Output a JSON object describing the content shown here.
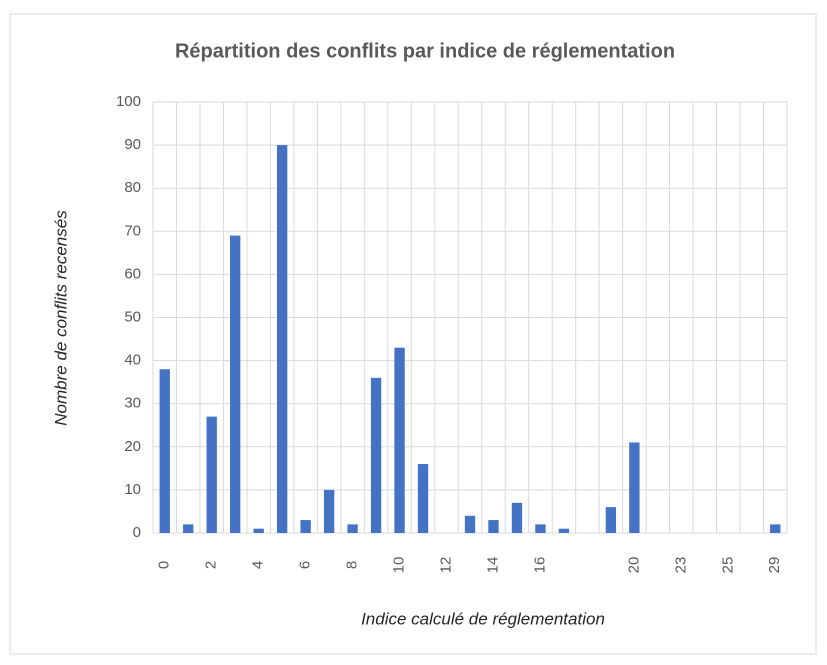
{
  "chart_data": {
    "type": "bar",
    "title": "Répartition des conflits par indice de réglementation",
    "x_label": "Indice calculé de réglementation",
    "y_label": "Nombre de conflits recensés",
    "categories": [
      "0",
      null,
      "2",
      null,
      "4",
      null,
      "6",
      null,
      "8",
      null,
      "10",
      null,
      "12",
      null,
      "14",
      null,
      "16",
      null,
      null,
      null,
      "20",
      null,
      "23",
      null,
      "25",
      null,
      "29"
    ],
    "values": [
      38,
      2,
      27,
      69,
      1,
      90,
      3,
      10,
      2,
      36,
      43,
      16,
      0,
      4,
      3,
      7,
      2,
      1,
      0,
      6,
      21,
      0,
      0,
      0,
      0,
      0,
      2
    ],
    "color": "#4472c4",
    "ylim": [
      0,
      100
    ],
    "yticks": [
      0,
      10,
      20,
      30,
      40,
      50,
      60,
      70,
      80,
      90,
      100
    ],
    "grid": true
  }
}
